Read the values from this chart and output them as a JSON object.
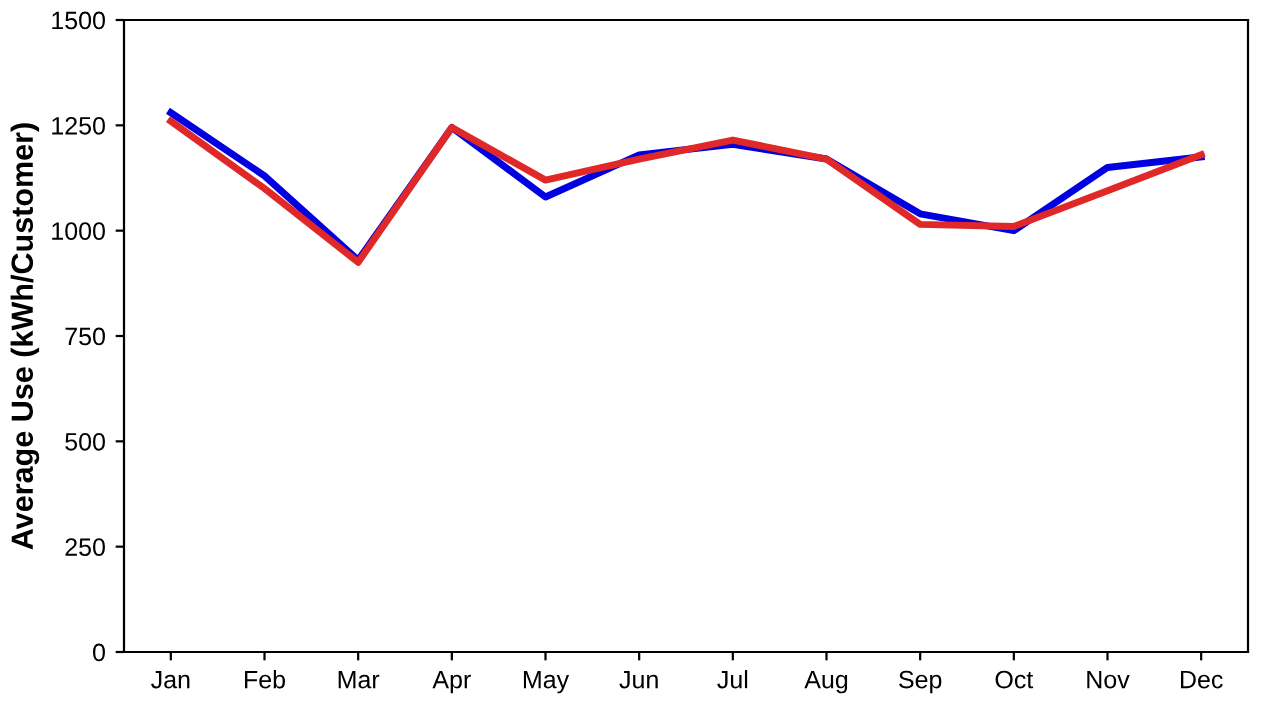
{
  "chart_data": {
    "type": "line",
    "ylabel": "Average Use (kWh/Customer)",
    "categories": [
      "Jan",
      "Feb",
      "Mar",
      "Apr",
      "May",
      "Jun",
      "Jul",
      "Aug",
      "Sep",
      "Oct",
      "Nov",
      "Dec"
    ],
    "series": [
      {
        "color": "#0000e0",
        "values": [
          1280,
          1130,
          930,
          1245,
          1080,
          1180,
          1205,
          1170,
          1040,
          1000,
          1150,
          1175
        ]
      },
      {
        "color": "#e02828",
        "values": [
          1260,
          1100,
          925,
          1245,
          1120,
          1170,
          1215,
          1170,
          1015,
          1010,
          1095,
          1180
        ]
      }
    ],
    "ylim": [
      0,
      1500
    ],
    "yticks": [
      0,
      250,
      500,
      750,
      1000,
      1250,
      1500
    ],
    "grid": false,
    "marker": "none",
    "line_style": "solid"
  }
}
